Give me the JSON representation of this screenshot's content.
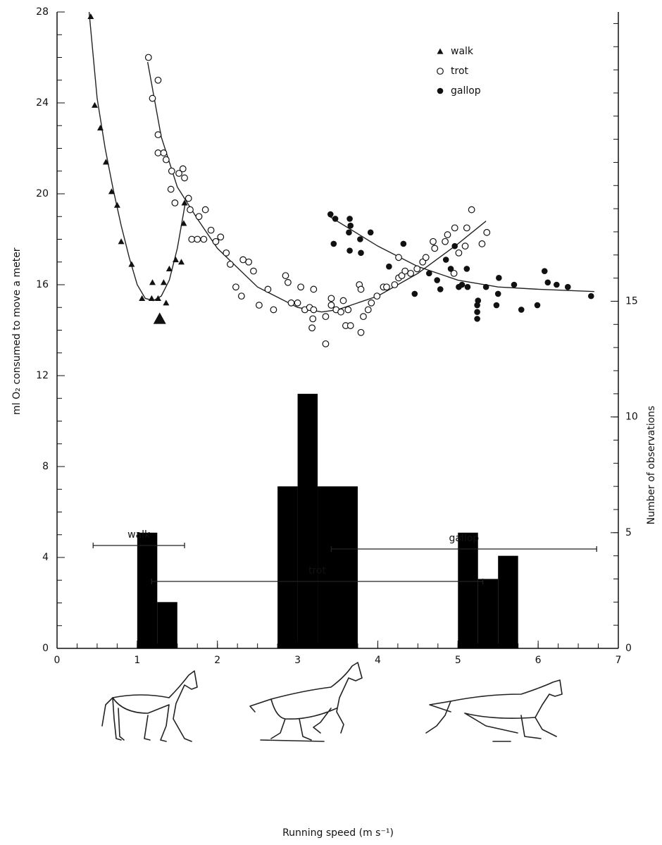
{
  "chart_data": [
    {
      "type": "scatter",
      "xlabel": "Running speed (m s⁻¹)",
      "ylabel": "ml O₂ consumed to move a meter",
      "xlim": [
        0,
        7
      ],
      "xticks": [
        0,
        1,
        2,
        3,
        4,
        5,
        6,
        7
      ],
      "ylim": [
        0,
        28
      ],
      "yticks": [
        0,
        4,
        8,
        12,
        16,
        20,
        24,
        28
      ],
      "legend": "upper right",
      "series": [
        {
          "name": "walk",
          "marker": "triangle",
          "color": "#111111",
          "x": [
            0.42,
            0.47,
            0.54,
            0.61,
            0.68,
            0.75,
            0.8,
            0.93,
            1.06,
            1.19,
            1.18,
            1.26,
            1.33,
            1.36,
            1.4,
            1.48,
            1.55,
            1.58,
            1.59,
            1.28
          ],
          "values": [
            27.8,
            23.9,
            22.9,
            21.4,
            20.1,
            19.5,
            17.9,
            16.9,
            15.4,
            16.1,
            15.4,
            15.4,
            16.1,
            15.2,
            16.7,
            17.1,
            17.0,
            18.7,
            19.6,
            14.5
          ]
        },
        {
          "name": "trot",
          "marker": "open-circle",
          "color": "#111111",
          "x": [
            1.14,
            1.26,
            1.19,
            1.26,
            1.26,
            1.33,
            1.36,
            1.43,
            1.42,
            1.47,
            1.52,
            1.57,
            1.59,
            1.64,
            1.66,
            1.68,
            1.75,
            1.77,
            1.83,
            1.85,
            1.92,
            1.98,
            2.04,
            2.11,
            2.16,
            2.23,
            2.3,
            2.32,
            2.39,
            2.45,
            2.52,
            2.63,
            2.7,
            2.85,
            2.88,
            2.92,
            3.04,
            3.0,
            3.09,
            3.15,
            3.2,
            3.2,
            3.19,
            3.18,
            3.35,
            3.35,
            3.42,
            3.42,
            3.48,
            3.54,
            3.57,
            3.6,
            3.66,
            3.63,
            3.77,
            3.79,
            3.79,
            3.82,
            3.88,
            3.92,
            3.99,
            4.07,
            4.11,
            4.21,
            4.26,
            4.3,
            4.26,
            4.34,
            4.41,
            4.49,
            4.56,
            4.6,
            4.69,
            4.71,
            4.84,
            4.87,
            4.95,
            4.96,
            5.01,
            5.09,
            5.11,
            5.17,
            5.3,
            5.36
          ],
          "values": [
            26.0,
            25.0,
            24.2,
            22.6,
            21.8,
            21.8,
            21.5,
            21.0,
            20.2,
            19.6,
            20.9,
            21.1,
            20.7,
            19.8,
            19.3,
            18.0,
            18.0,
            19.0,
            18.0,
            19.3,
            18.4,
            17.9,
            18.1,
            17.4,
            16.9,
            15.9,
            15.5,
            17.1,
            17.0,
            16.6,
            15.1,
            15.8,
            14.9,
            16.4,
            16.1,
            15.2,
            15.9,
            15.2,
            14.9,
            15.0,
            14.9,
            15.8,
            14.5,
            14.1,
            13.4,
            14.6,
            15.4,
            15.1,
            14.9,
            14.8,
            15.3,
            14.2,
            14.2,
            14.9,
            16.0,
            15.8,
            13.9,
            14.6,
            14.9,
            15.2,
            15.5,
            15.9,
            15.9,
            16.0,
            16.3,
            16.4,
            17.2,
            16.6,
            16.5,
            16.7,
            17.0,
            17.2,
            17.9,
            17.6,
            17.9,
            18.2,
            16.5,
            18.5,
            17.4,
            17.7,
            18.5,
            19.3,
            17.8,
            18.3
          ]
        },
        {
          "name": "gallop",
          "marker": "filled-circle",
          "color": "#111111",
          "x": [
            3.41,
            3.47,
            3.45,
            3.65,
            3.66,
            3.64,
            3.65,
            3.78,
            3.79,
            3.91,
            4.14,
            4.32,
            4.46,
            4.64,
            4.74,
            4.78,
            4.85,
            4.91,
            4.96,
            5.01,
            5.05,
            5.11,
            5.12,
            5.24,
            5.24,
            5.24,
            5.25,
            5.35,
            5.48,
            5.5,
            5.51,
            5.7,
            5.79,
            5.99,
            6.08,
            6.12,
            6.23,
            6.37,
            6.66
          ],
          "values": [
            19.1,
            18.9,
            17.8,
            18.9,
            18.6,
            18.3,
            17.5,
            18.0,
            17.4,
            18.3,
            16.8,
            17.8,
            15.6,
            16.5,
            16.2,
            15.8,
            17.1,
            16.7,
            17.7,
            15.9,
            16.0,
            16.7,
            15.9,
            15.1,
            14.8,
            14.5,
            15.3,
            15.9,
            15.1,
            15.6,
            16.3,
            16.0,
            14.9,
            15.1,
            16.6,
            16.1,
            16.0,
            15.9,
            15.5
          ]
        }
      ],
      "fits": [
        {
          "color": "#222222",
          "x": [
            0.4,
            0.5,
            0.6,
            0.7,
            0.8,
            0.9,
            1.0,
            1.1,
            1.2,
            1.3,
            1.4,
            1.5,
            1.6
          ],
          "values": [
            28,
            24.2,
            22.0,
            20.2,
            18.6,
            17.2,
            16.0,
            15.4,
            15.3,
            15.5,
            16.2,
            17.6,
            19.6
          ]
        },
        {
          "color": "#222222",
          "x": [
            1.13,
            1.3,
            1.5,
            1.75,
            2.0,
            2.5,
            3.0,
            3.3,
            3.5,
            4.0,
            4.5,
            5.0,
            5.35
          ],
          "values": [
            25.8,
            22.5,
            20.3,
            18.9,
            17.6,
            15.9,
            15.0,
            14.8,
            14.9,
            15.5,
            16.5,
            17.8,
            18.8
          ]
        },
        {
          "color": "#222222",
          "x": [
            3.4,
            4.0,
            4.5,
            5.0,
            5.5,
            6.0,
            6.7
          ],
          "values": [
            19.0,
            17.7,
            16.8,
            16.2,
            15.9,
            15.8,
            15.7
          ]
        }
      ],
      "gait_ranges": [
        {
          "label": "walk",
          "start": 0.45,
          "end": 1.59
        },
        {
          "label": "gallop",
          "start": 3.42,
          "end": 6.73
        },
        {
          "label": "trot",
          "start": 1.18,
          "end": 5.31
        }
      ]
    },
    {
      "type": "histogram",
      "y2label": "Number of observations",
      "color": "#000000",
      "y2lim": [
        0,
        27.5
      ],
      "y2ticks": [
        0,
        5,
        10,
        15
      ],
      "bins": [
        1,
        1.25,
        1.5,
        1.75,
        2,
        2.25,
        2.5,
        2.75,
        3,
        3.25,
        3.5,
        3.75,
        4,
        4.25,
        4.5,
        4.75,
        5,
        5.25,
        5.5,
        5.75
      ],
      "counts": [
        5,
        2,
        0,
        0,
        0,
        0,
        0,
        7,
        11,
        7,
        7,
        0,
        0,
        0,
        0,
        0,
        5,
        3,
        4
      ]
    }
  ]
}
